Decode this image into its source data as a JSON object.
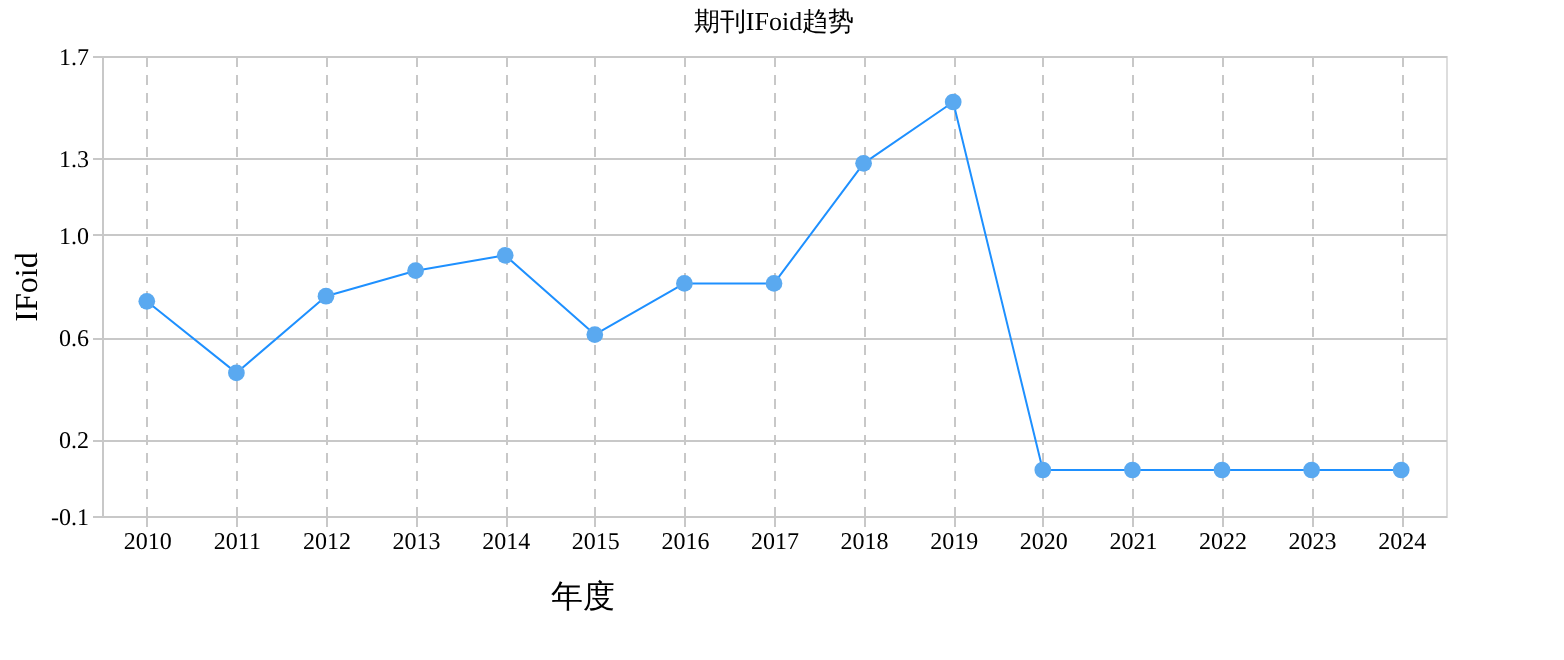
{
  "chart_data": {
    "type": "line",
    "title": "期刊IFoid趋势",
    "xlabel": "年度",
    "ylabel": "IFoid",
    "categories": [
      "2010",
      "2011",
      "2012",
      "2013",
      "2014",
      "2015",
      "2016",
      "2017",
      "2018",
      "2019",
      "2020",
      "2021",
      "2022",
      "2023",
      "2024"
    ],
    "series": [
      {
        "color": "#1e90ff",
        "values": [
          0.74,
          0.46,
          0.76,
          0.86,
          0.92,
          0.61,
          0.81,
          0.81,
          1.28,
          1.52,
          0.08,
          0.08,
          0.08,
          0.08,
          0.08
        ]
      }
    ],
    "ylim": [
      -0.1,
      1.7
    ],
    "yticks": [
      -0.1,
      0.2,
      0.6,
      {
        "value": 1.0,
        "label": "1.0"
      },
      1.3,
      1.7
    ],
    "grid": true,
    "marker": "circle",
    "line_style": "solid",
    "legend": false
  }
}
